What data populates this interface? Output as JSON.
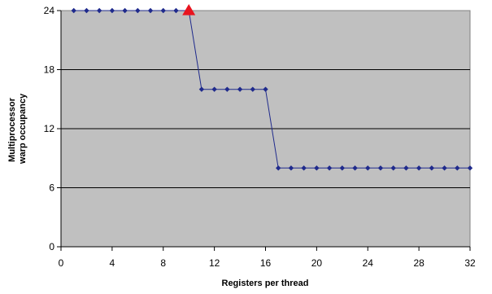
{
  "chart_data": {
    "type": "line",
    "title": "",
    "xlabel": "Registers per thread",
    "ylabel": [
      "Multiprocessor",
      "warp occupancy"
    ],
    "xlim": [
      0,
      32
    ],
    "ylim": [
      0,
      24
    ],
    "xticks": [
      0,
      4,
      8,
      12,
      16,
      20,
      24,
      28,
      32
    ],
    "yticks": [
      0,
      6,
      12,
      18,
      24
    ],
    "grid": "horizontal",
    "legend": "none",
    "series": [
      {
        "x": [
          1,
          2,
          3,
          4,
          5,
          6,
          7,
          8,
          9,
          10,
          11,
          12,
          13,
          14,
          15,
          16,
          17,
          18,
          19,
          20,
          21,
          22,
          23,
          24,
          25,
          26,
          27,
          28,
          29,
          30,
          31,
          32
        ],
        "y": [
          24,
          24,
          24,
          24,
          24,
          24,
          24,
          24,
          24,
          24,
          16,
          16,
          16,
          16,
          16,
          16,
          8,
          8,
          8,
          8,
          8,
          8,
          8,
          8,
          8,
          8,
          8,
          8,
          8,
          8,
          8,
          8
        ],
        "color": "#1f2a8c",
        "marker": "diamond"
      }
    ],
    "highlight": {
      "x": 10,
      "y": 24,
      "marker": "triangle",
      "color": "#e8141f"
    },
    "plot_background": "#c0c0c0"
  }
}
